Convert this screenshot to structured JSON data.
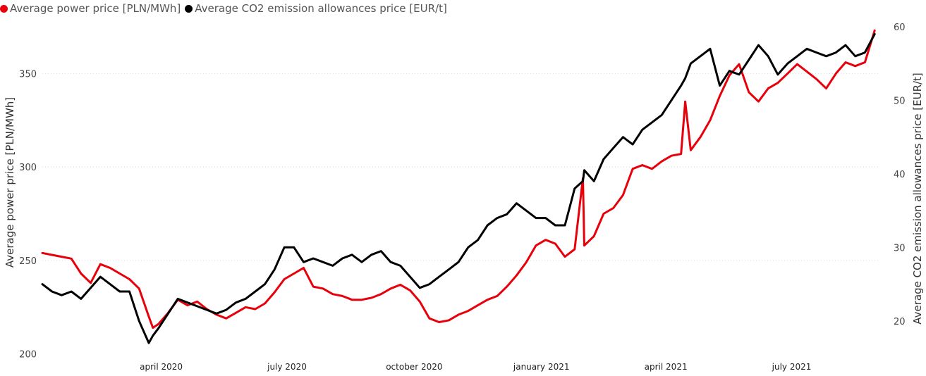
{
  "legend": {
    "items": [
      {
        "label": "Average power price [PLN/MWh]",
        "color": "#e8000b"
      },
      {
        "label": "Average CO2 emission allowances price [EUR/t]",
        "color": "#000000"
      }
    ]
  },
  "chart_data": {
    "type": "line",
    "title": "",
    "xlabel": "",
    "ylabel": "Average power price [PLN/MWh]",
    "y2label": "Average CO2 emission allowances price [EUR/t]",
    "ylim": [
      198,
      375
    ],
    "y2lim": [
      15,
      60
    ],
    "yticks": [
      200,
      250,
      300,
      350
    ],
    "y2ticks": [
      20,
      30,
      40,
      50,
      60
    ],
    "xlim": [
      "2020-01-06",
      "2021-09-03"
    ],
    "xticks": [
      {
        "date": "2020-04-01",
        "label": "april 2020"
      },
      {
        "date": "2020-07-01",
        "label": "july 2020"
      },
      {
        "date": "2020-10-01",
        "label": "october 2020"
      },
      {
        "date": "2021-01-01",
        "label": "january 2021"
      },
      {
        "date": "2021-04-01",
        "label": "april 2021"
      },
      {
        "date": "2021-07-01",
        "label": "july 2021"
      }
    ],
    "grid": "horizontal dotted",
    "legend_position": "top-left",
    "series": [
      {
        "name": "Average power price [PLN/MWh]",
        "axis": "left",
        "color": "#e8000b",
        "x": [
          "2020-01-06",
          "2020-01-13",
          "2020-01-20",
          "2020-01-27",
          "2020-02-03",
          "2020-02-10",
          "2020-02-17",
          "2020-02-24",
          "2020-03-02",
          "2020-03-09",
          "2020-03-16",
          "2020-03-23",
          "2020-03-26",
          "2020-03-30",
          "2020-04-06",
          "2020-04-13",
          "2020-04-20",
          "2020-04-27",
          "2020-05-04",
          "2020-05-11",
          "2020-05-18",
          "2020-05-25",
          "2020-06-01",
          "2020-06-08",
          "2020-06-15",
          "2020-06-22",
          "2020-06-29",
          "2020-07-06",
          "2020-07-13",
          "2020-07-20",
          "2020-07-27",
          "2020-08-03",
          "2020-08-10",
          "2020-08-17",
          "2020-08-24",
          "2020-08-31",
          "2020-09-07",
          "2020-09-14",
          "2020-09-21",
          "2020-09-28",
          "2020-10-05",
          "2020-10-12",
          "2020-10-19",
          "2020-10-26",
          "2020-11-02",
          "2020-11-09",
          "2020-11-16",
          "2020-11-23",
          "2020-11-30",
          "2020-12-07",
          "2020-12-14",
          "2020-12-21",
          "2020-12-28",
          "2021-01-04",
          "2021-01-11",
          "2021-01-18",
          "2021-01-25",
          "2021-01-31",
          "2021-02-01",
          "2021-02-08",
          "2021-02-15",
          "2021-02-22",
          "2021-03-01",
          "2021-03-08",
          "2021-03-15",
          "2021-03-22",
          "2021-03-29",
          "2021-04-05",
          "2021-04-12",
          "2021-04-15",
          "2021-04-19",
          "2021-04-26",
          "2021-05-03",
          "2021-05-10",
          "2021-05-17",
          "2021-05-24",
          "2021-05-31",
          "2021-06-07",
          "2021-06-14",
          "2021-06-21",
          "2021-06-28",
          "2021-07-05",
          "2021-07-12",
          "2021-07-19",
          "2021-07-26",
          "2021-08-02",
          "2021-08-09",
          "2021-08-16",
          "2021-08-23",
          "2021-08-30"
        ],
        "values": [
          254,
          253,
          252,
          251,
          243,
          238,
          248,
          246,
          243,
          240,
          235,
          220,
          214,
          216,
          222,
          229,
          226,
          228,
          224,
          221,
          219,
          222,
          225,
          224,
          227,
          233,
          240,
          243,
          246,
          236,
          235,
          232,
          231,
          229,
          229,
          230,
          232,
          235,
          237,
          234,
          228,
          219,
          217,
          218,
          221,
          223,
          226,
          229,
          231,
          236,
          242,
          249,
          258,
          261,
          259,
          252,
          256,
          294,
          258,
          263,
          275,
          278,
          285,
          299,
          301,
          299,
          303,
          306,
          307,
          335,
          309,
          316,
          325,
          338,
          349,
          355,
          340,
          335,
          342,
          345,
          350,
          355,
          351,
          347,
          342,
          350,
          356,
          354,
          356,
          373
        ]
      },
      {
        "name": "Average CO2 emission allowances price [EUR/t]",
        "axis": "right",
        "color": "#000000",
        "x": [
          "2020-01-06",
          "2020-01-13",
          "2020-01-20",
          "2020-01-27",
          "2020-02-03",
          "2020-02-10",
          "2020-02-17",
          "2020-02-24",
          "2020-03-02",
          "2020-03-09",
          "2020-03-16",
          "2020-03-23",
          "2020-03-26",
          "2020-03-30",
          "2020-04-06",
          "2020-04-13",
          "2020-04-20",
          "2020-04-27",
          "2020-05-04",
          "2020-05-11",
          "2020-05-18",
          "2020-05-25",
          "2020-06-01",
          "2020-06-08",
          "2020-06-15",
          "2020-06-22",
          "2020-06-29",
          "2020-07-06",
          "2020-07-13",
          "2020-07-20",
          "2020-07-27",
          "2020-08-03",
          "2020-08-10",
          "2020-08-17",
          "2020-08-24",
          "2020-08-31",
          "2020-09-07",
          "2020-09-14",
          "2020-09-21",
          "2020-09-28",
          "2020-10-05",
          "2020-10-12",
          "2020-10-19",
          "2020-10-26",
          "2020-11-02",
          "2020-11-09",
          "2020-11-16",
          "2020-11-23",
          "2020-11-30",
          "2020-12-07",
          "2020-12-14",
          "2020-12-21",
          "2020-12-28",
          "2021-01-04",
          "2021-01-11",
          "2021-01-18",
          "2021-01-25",
          "2021-01-31",
          "2021-02-01",
          "2021-02-08",
          "2021-02-15",
          "2021-02-22",
          "2021-03-01",
          "2021-03-08",
          "2021-03-15",
          "2021-03-22",
          "2021-03-29",
          "2021-04-05",
          "2021-04-12",
          "2021-04-15",
          "2021-04-19",
          "2021-04-26",
          "2021-05-03",
          "2021-05-10",
          "2021-05-17",
          "2021-05-24",
          "2021-05-31",
          "2021-06-07",
          "2021-06-14",
          "2021-06-21",
          "2021-06-28",
          "2021-07-05",
          "2021-07-12",
          "2021-07-19",
          "2021-07-26",
          "2021-08-02",
          "2021-08-09",
          "2021-08-16",
          "2021-08-23",
          "2021-08-30"
        ],
        "values": [
          25,
          24,
          23.5,
          24,
          23,
          24.5,
          26,
          25,
          24,
          24,
          20,
          17,
          18,
          19,
          21,
          23,
          22.5,
          22,
          21.5,
          21,
          21.5,
          22.5,
          23,
          24,
          25,
          27,
          30,
          30,
          28,
          28.5,
          28,
          27.5,
          28.5,
          29,
          28,
          29,
          29.5,
          28,
          27.5,
          26,
          24.5,
          25,
          26,
          27,
          28,
          30,
          31,
          33,
          34,
          34.5,
          36,
          35,
          34,
          34,
          33,
          33,
          38,
          39,
          40.5,
          39,
          42,
          43.5,
          45,
          44,
          46,
          47,
          48,
          50,
          52,
          53,
          55,
          56,
          57,
          52,
          54,
          53.5,
          55.5,
          57.5,
          56,
          53.5,
          55,
          56,
          57,
          56.5,
          56,
          56.5,
          57.5,
          56,
          56.5,
          59
        ]
      }
    ]
  }
}
